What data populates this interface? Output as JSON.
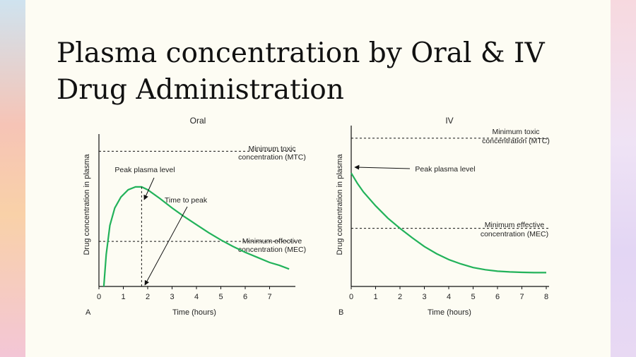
{
  "slide": {
    "title_line1": "Plasma concentration by Oral & IV",
    "title_line2": "Drug Administration"
  },
  "chart_data": [
    {
      "type": "line",
      "panel_label": "A",
      "title": "Oral",
      "xlabel": "Time (hours)",
      "ylabel": "Drug concentration in plasma",
      "x_ticks": [
        "0",
        "1",
        "2",
        "3",
        "4",
        "5",
        "6",
        "7"
      ],
      "xlim": [
        0,
        7.8
      ],
      "ylim": [
        0,
        100
      ],
      "grid": false,
      "series": [
        {
          "color": "#22b25a",
          "x": [
            0.2,
            0.3,
            0.45,
            0.65,
            0.9,
            1.2,
            1.5,
            1.75,
            2.0,
            2.5,
            3.0,
            3.5,
            4.0,
            4.5,
            5.0,
            5.5,
            6.0,
            6.5,
            7.0,
            7.4,
            7.8
          ],
          "y": [
            0,
            22,
            42,
            54,
            61.5,
            66.5,
            68.5,
            68.5,
            66.5,
            60.5,
            54,
            48,
            42.5,
            37,
            32,
            27.5,
            23.5,
            20,
            16.5,
            14.5,
            12
          ]
        }
      ],
      "reference_lines": [
        {
          "label_line1": "Minimum toxic",
          "label_line2": "concentration (MTC)",
          "y": 93
        },
        {
          "label_line1": "Minimum effective",
          "label_line2": "concentration (MEC)",
          "y": 31
        }
      ],
      "annotations": [
        {
          "text": "Peak plasma level",
          "x": 1.75,
          "y": 68.5
        },
        {
          "text": "Time to peak",
          "x": 1.75,
          "y": 0
        }
      ]
    },
    {
      "type": "line",
      "panel_label": "B",
      "title": "IV",
      "xlabel": "Time (hours)",
      "ylabel": "Drug concentration in plasma",
      "x_ticks": [
        "0",
        "1",
        "2",
        "3",
        "4",
        "5",
        "6",
        "7",
        "8"
      ],
      "xlim": [
        0,
        8.2
      ],
      "ylim": [
        0,
        100
      ],
      "grid": false,
      "series": [
        {
          "color": "#22b25a",
          "x": [
            0,
            0.25,
            0.5,
            1,
            1.5,
            2,
            2.5,
            3,
            3.5,
            4,
            4.5,
            5,
            5.5,
            6,
            6.5,
            7,
            7.5,
            8
          ],
          "y": [
            78,
            71,
            65,
            55.5,
            47,
            40,
            33.5,
            27.5,
            22.5,
            18.5,
            15.5,
            13,
            11.5,
            10.5,
            10,
            9.7,
            9.5,
            9.5
          ]
        }
      ],
      "reference_lines": [
        {
          "label_line1": "Minimum toxic",
          "label_line2": "concentration (MTC)",
          "y": 102
        },
        {
          "label_line1": "Minimum effective",
          "label_line2": "concentration (MEC)",
          "y": 40
        }
      ],
      "annotations": [
        {
          "text": "Peak plasma level",
          "x": 0,
          "y": 78
        }
      ]
    }
  ]
}
